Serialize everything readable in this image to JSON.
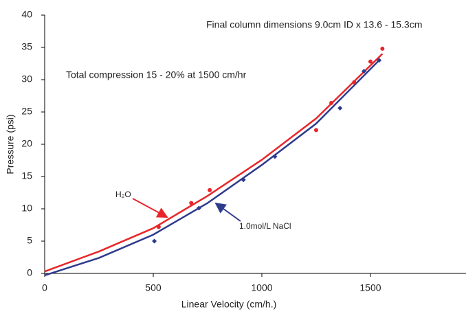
{
  "chart_data": {
    "type": "scatter",
    "x_label": "Linear Velocity (cm/h.)",
    "y_label": "Pressure (psi)",
    "annotations": [
      "Final column dimensions 9.0cm ID x 13.6 - 15.3cm",
      "Total compression 15 - 20% at 1500 cm/hr"
    ],
    "xlim": [
      0,
      1940
    ],
    "xticks": [
      0,
      500,
      1000,
      1500
    ],
    "ylim": [
      0,
      40
    ],
    "yticks": [
      0,
      5,
      10,
      15,
      20,
      25,
      30,
      35,
      40
    ],
    "grid": false,
    "series": [
      {
        "name": "H₂O",
        "color": "#e8262a",
        "marker": "circle",
        "x": [
          525,
          675,
          760,
          1250,
          1320,
          1425,
          1500,
          1555
        ],
        "values": [
          7.2,
          10.9,
          12.9,
          22.2,
          26.4,
          29.6,
          32.8,
          34.8
        ]
      },
      {
        "name": "1.0mol/L NaCl",
        "color": "#2e3a8c",
        "marker": "diamond",
        "x": [
          505,
          710,
          915,
          1060,
          1360,
          1470,
          1540
        ],
        "values": [
          5.0,
          10.1,
          14.5,
          18.1,
          25.6,
          31.3,
          33.0
        ]
      }
    ],
    "fits": [
      {
        "color": "#e8262a",
        "x": [
          0,
          250,
          500,
          750,
          1000,
          1250,
          1555
        ],
        "values": [
          0.3,
          3.4,
          7.0,
          12.0,
          17.6,
          24.0,
          34.0
        ]
      },
      {
        "color": "#2e3a8c",
        "x": [
          0,
          250,
          500,
          750,
          1000,
          1250,
          1540
        ],
        "values": [
          -0.3,
          2.4,
          6.0,
          10.9,
          16.8,
          23.2,
          33.0
        ]
      }
    ]
  }
}
